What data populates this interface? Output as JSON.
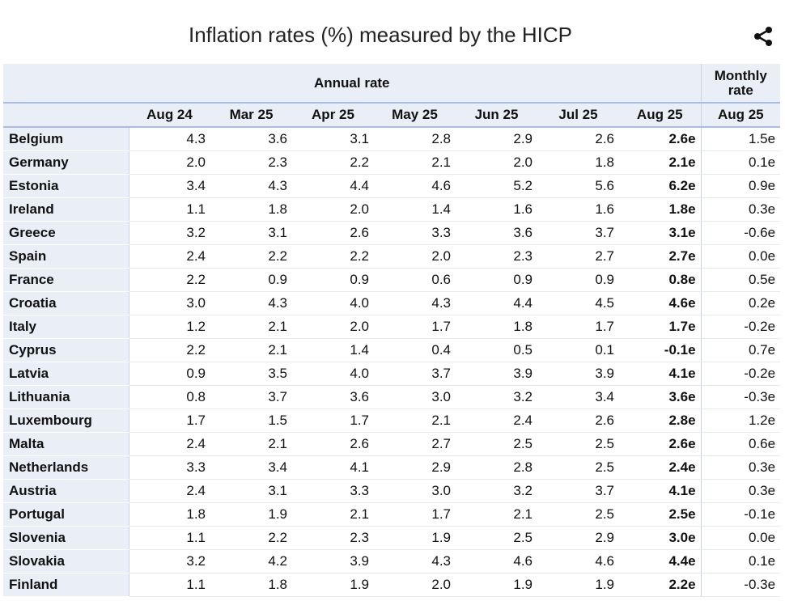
{
  "title": "Inflation rates (%) measured by the HICP",
  "share_icon": "share-icon",
  "chart_data": {
    "type": "table",
    "title": "Inflation rates (%) measured by the HICP",
    "group_headers": {
      "annual": "Annual rate",
      "monthly": "Monthly rate"
    },
    "columns": [
      "Aug 24",
      "Mar 25",
      "Apr 25",
      "May 25",
      "Jun 25",
      "Jul 25",
      "Aug 25",
      "Aug 25"
    ],
    "rows": [
      {
        "country": "Belgium",
        "values": [
          "4.3",
          "3.6",
          "3.1",
          "2.8",
          "2.9",
          "2.6",
          "2.6e",
          "1.5e"
        ]
      },
      {
        "country": "Germany",
        "values": [
          "2.0",
          "2.3",
          "2.2",
          "2.1",
          "2.0",
          "1.8",
          "2.1e",
          "0.1e"
        ]
      },
      {
        "country": "Estonia",
        "values": [
          "3.4",
          "4.3",
          "4.4",
          "4.6",
          "5.2",
          "5.6",
          "6.2e",
          "0.9e"
        ]
      },
      {
        "country": "Ireland",
        "values": [
          "1.1",
          "1.8",
          "2.0",
          "1.4",
          "1.6",
          "1.6",
          "1.8e",
          "0.3e"
        ]
      },
      {
        "country": "Greece",
        "values": [
          "3.2",
          "3.1",
          "2.6",
          "3.3",
          "3.6",
          "3.7",
          "3.1e",
          "-0.6e"
        ]
      },
      {
        "country": "Spain",
        "values": [
          "2.4",
          "2.2",
          "2.2",
          "2.0",
          "2.3",
          "2.7",
          "2.7e",
          "0.0e"
        ]
      },
      {
        "country": "France",
        "values": [
          "2.2",
          "0.9",
          "0.9",
          "0.6",
          "0.9",
          "0.9",
          "0.8e",
          "0.5e"
        ]
      },
      {
        "country": "Croatia",
        "values": [
          "3.0",
          "4.3",
          "4.0",
          "4.3",
          "4.4",
          "4.5",
          "4.6e",
          "0.2e"
        ]
      },
      {
        "country": "Italy",
        "values": [
          "1.2",
          "2.1",
          "2.0",
          "1.7",
          "1.8",
          "1.7",
          "1.7e",
          "-0.2e"
        ]
      },
      {
        "country": "Cyprus",
        "values": [
          "2.2",
          "2.1",
          "1.4",
          "0.4",
          "0.5",
          "0.1",
          "-0.1e",
          "0.7e"
        ]
      },
      {
        "country": "Latvia",
        "values": [
          "0.9",
          "3.5",
          "4.0",
          "3.7",
          "3.9",
          "3.9",
          "4.1e",
          "-0.2e"
        ]
      },
      {
        "country": "Lithuania",
        "values": [
          "0.8",
          "3.7",
          "3.6",
          "3.0",
          "3.2",
          "3.4",
          "3.6e",
          "-0.3e"
        ]
      },
      {
        "country": "Luxembourg",
        "values": [
          "1.7",
          "1.5",
          "1.7",
          "2.1",
          "2.4",
          "2.6",
          "2.8e",
          "1.2e"
        ]
      },
      {
        "country": "Malta",
        "values": [
          "2.4",
          "2.1",
          "2.6",
          "2.7",
          "2.5",
          "2.5",
          "2.6e",
          "0.6e"
        ]
      },
      {
        "country": "Netherlands",
        "values": [
          "3.3",
          "3.4",
          "4.1",
          "2.9",
          "2.8",
          "2.5",
          "2.4e",
          "0.3e"
        ]
      },
      {
        "country": "Austria",
        "values": [
          "2.4",
          "3.1",
          "3.3",
          "3.0",
          "3.2",
          "3.7",
          "4.1e",
          "0.3e"
        ]
      },
      {
        "country": "Portugal",
        "values": [
          "1.8",
          "1.9",
          "2.1",
          "1.7",
          "2.1",
          "2.5",
          "2.5e",
          "-0.1e"
        ]
      },
      {
        "country": "Slovenia",
        "values": [
          "1.1",
          "2.2",
          "2.3",
          "1.9",
          "2.5",
          "2.9",
          "3.0e",
          "0.0e"
        ]
      },
      {
        "country": "Slovakia",
        "values": [
          "3.2",
          "4.2",
          "3.9",
          "4.3",
          "4.6",
          "4.6",
          "4.4e",
          "0.1e"
        ]
      },
      {
        "country": "Finland",
        "values": [
          "1.1",
          "1.8",
          "1.9",
          "2.0",
          "1.9",
          "1.9",
          "2.2e",
          "-0.3e"
        ]
      }
    ]
  }
}
